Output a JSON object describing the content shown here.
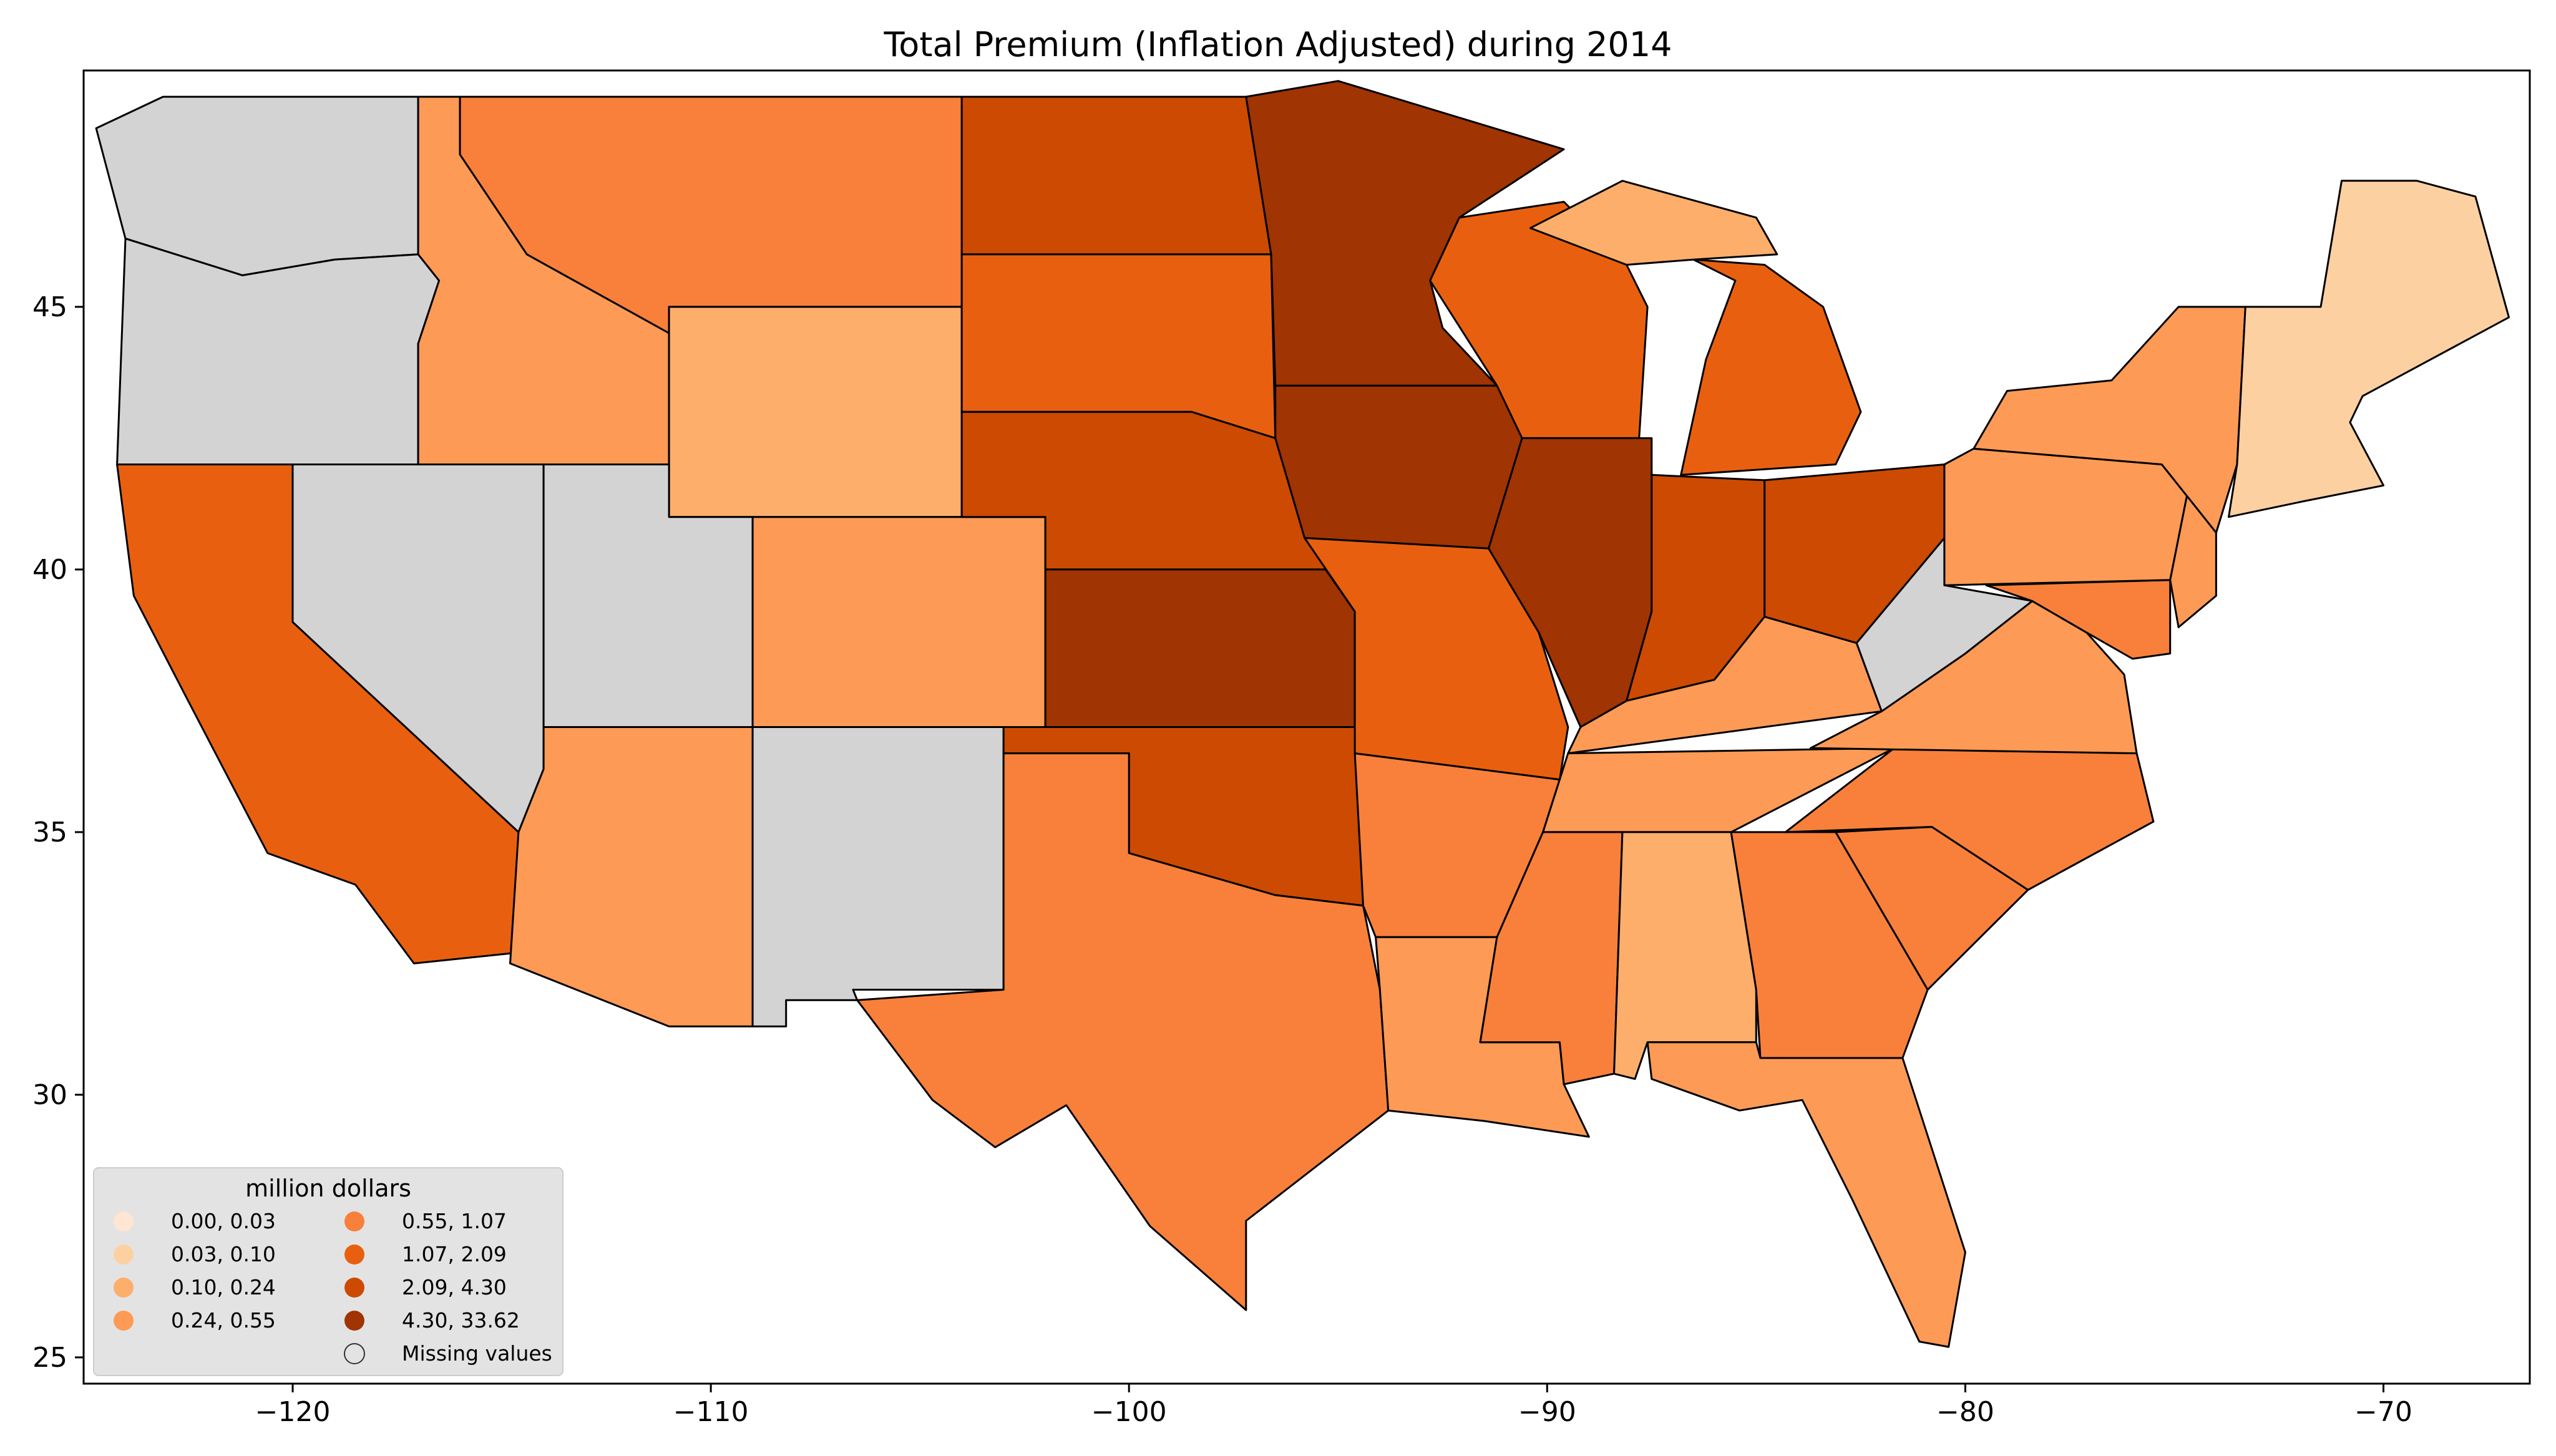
{
  "chart_data": {
    "type": "choropleth",
    "title": "Total  Premium  (Inflation Adjusted) during 2014",
    "xlim": [
      -125,
      -66.5
    ],
    "ylim": [
      24.5,
      49.5
    ],
    "x_ticks": [
      -120,
      -110,
      -100,
      -90,
      -80,
      -70
    ],
    "y_ticks": [
      25,
      30,
      35,
      40,
      45
    ],
    "x_tick_labels": [
      "−120",
      "−110",
      "−100",
      "−90",
      "−80",
      "−70"
    ],
    "y_tick_labels": [
      "25",
      "30",
      "35",
      "40",
      "45"
    ],
    "legend": {
      "title": "million dollars",
      "placement": "lower-left",
      "entries": [
        {
          "label": "0.00,  0.03",
          "color": "#fee6d2"
        },
        {
          "label": "0.03,  0.10",
          "color": "#fdd0a2"
        },
        {
          "label": "0.10,  0.24",
          "color": "#fdae6b"
        },
        {
          "label": "0.24,  0.55",
          "color": "#fd9a55"
        },
        {
          "label": "0.55,  1.07",
          "color": "#f8803b"
        },
        {
          "label": "1.07,  2.09",
          "color": "#e8600f"
        },
        {
          "label": "2.09,  4.30",
          "color": "#cc4a02"
        },
        {
          "label": "4.30, 33.62",
          "color": "#a03403"
        },
        {
          "label": "Missing values",
          "color": "#d3d3d3"
        }
      ]
    },
    "missing_color": "#d3d3d3"
  }
}
